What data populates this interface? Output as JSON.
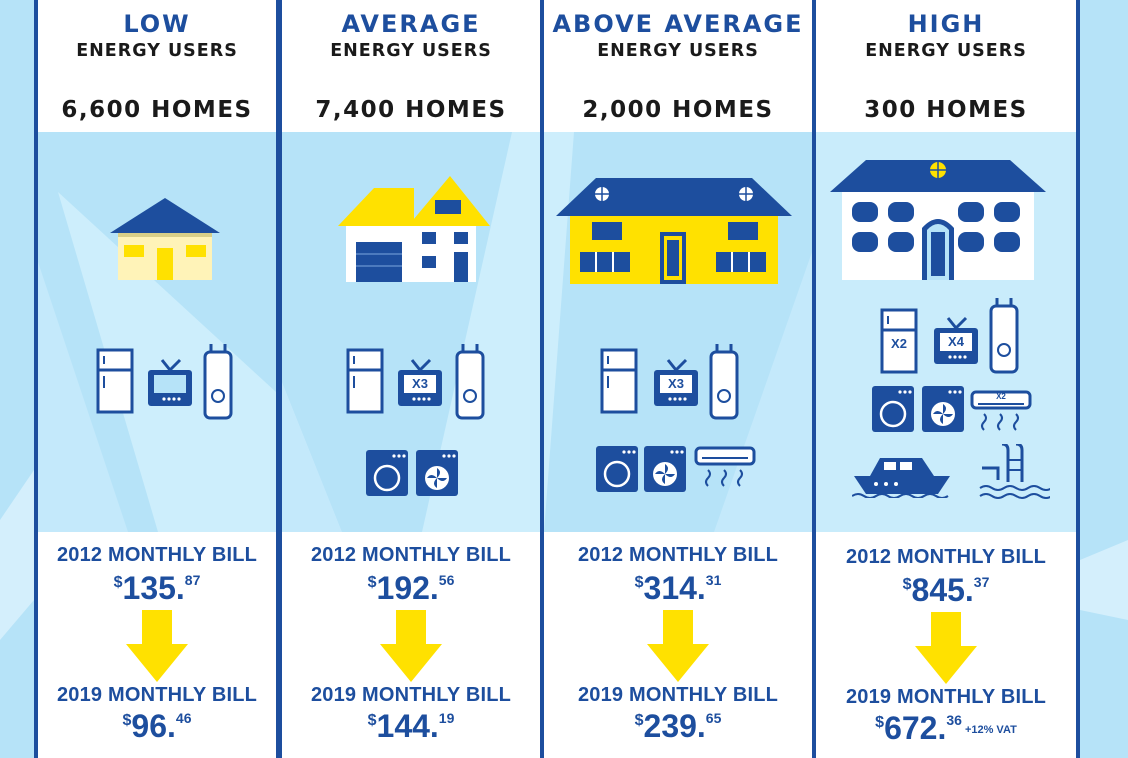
{
  "columns": [
    {
      "id": "low",
      "title_top": "LOW",
      "title_sub": "ENERGY USERS",
      "homes": "6,600 HOMES",
      "bill_2012_label": "2012 MONTHLY BILL",
      "bill_2012": {
        "currency": "$",
        "main": "135.",
        "cents": "87"
      },
      "bill_2019_label": "2019 MONTHLY BILL",
      "bill_2019": {
        "currency": "$",
        "main": "96.",
        "cents": "46",
        "suffix": ""
      }
    },
    {
      "id": "average",
      "title_top": "AVERAGE",
      "title_sub": "ENERGY USERS",
      "homes": "7,400 HOMES",
      "tv_label": "X3",
      "bill_2012_label": "2012 MONTHLY BILL",
      "bill_2012": {
        "currency": "$",
        "main": "192.",
        "cents": "56"
      },
      "bill_2019_label": "2019 MONTHLY BILL",
      "bill_2019": {
        "currency": "$",
        "main": "144.",
        "cents": "19",
        "suffix": ""
      }
    },
    {
      "id": "above-average",
      "title_top": "ABOVE AVERAGE",
      "title_sub": "ENERGY USERS",
      "homes": "2,000 HOMES",
      "tv_label": "X3",
      "bill_2012_label": "2012 MONTHLY BILL",
      "bill_2012": {
        "currency": "$",
        "main": "314.",
        "cents": "31"
      },
      "bill_2019_label": "2019 MONTHLY BILL",
      "bill_2019": {
        "currency": "$",
        "main": "239.",
        "cents": "65",
        "suffix": ""
      }
    },
    {
      "id": "high",
      "title_top": "HIGH",
      "title_sub": "ENERGY USERS",
      "homes": "300 HOMES",
      "fridge_label": "X2",
      "tv_label": "X4",
      "ac_label": "X2",
      "bill_2012_label": "2012 MONTHLY BILL",
      "bill_2012": {
        "currency": "$",
        "main": "845.",
        "cents": "37"
      },
      "bill_2019_label": "2019 MONTHLY BILL",
      "bill_2019": {
        "currency": "$",
        "main": "672.",
        "cents": "36",
        "suffix": "+12% VAT"
      }
    }
  ],
  "colors": {
    "navy": "#1d4e9e",
    "sky": "#b6e3f8",
    "yellow": "#ffe100",
    "pale_yellow": "#fff3b8"
  }
}
